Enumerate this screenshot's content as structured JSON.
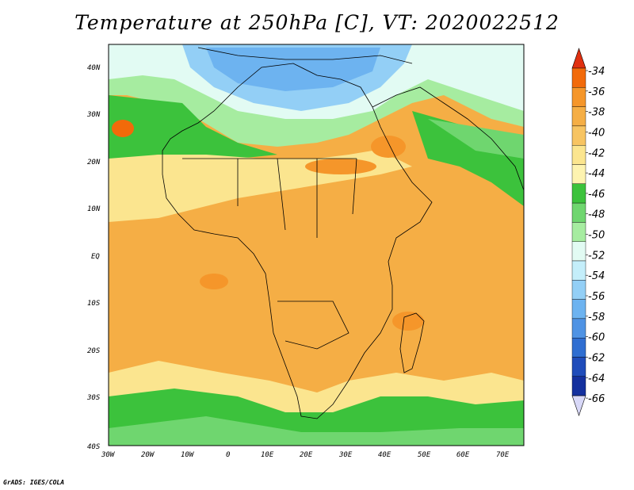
{
  "title": "Temperature at 250hPa [C], VT: 2020022512",
  "credit": "GrADS: IGES/COLA",
  "map": {
    "lat_labels": [
      "40N",
      "30N",
      "20N",
      "10N",
      "EQ",
      "10S",
      "20S",
      "30S",
      "40S"
    ],
    "lon_labels": [
      "30W",
      "20W",
      "10W",
      "0",
      "10E",
      "20E",
      "30E",
      "40E",
      "50E",
      "60E",
      "70E"
    ]
  },
  "colorbar": {
    "levels": [
      "-34",
      "-36",
      "-38",
      "-40",
      "-42",
      "-44",
      "-46",
      "-48",
      "-50",
      "-52",
      "-54",
      "-56",
      "-58",
      "-60",
      "-62",
      "-64",
      "-66"
    ],
    "colors": [
      "#e8400e",
      "#f26a0a",
      "#f5962a",
      "#f5ae45",
      "#f7c462",
      "#fbe58f",
      "#fdf3b0",
      "#3cc23c",
      "#6fd66f",
      "#a6eca0",
      "#e2fbf3",
      "#c4eefa",
      "#93cff6",
      "#6db3f0",
      "#4f93e4",
      "#2f6ed1",
      "#1f4cba",
      "#14309e",
      "#0a1a7a"
    ],
    "top_arrow_color": "#e03010",
    "bottom_arrow_color": "#d8d8f8"
  }
}
